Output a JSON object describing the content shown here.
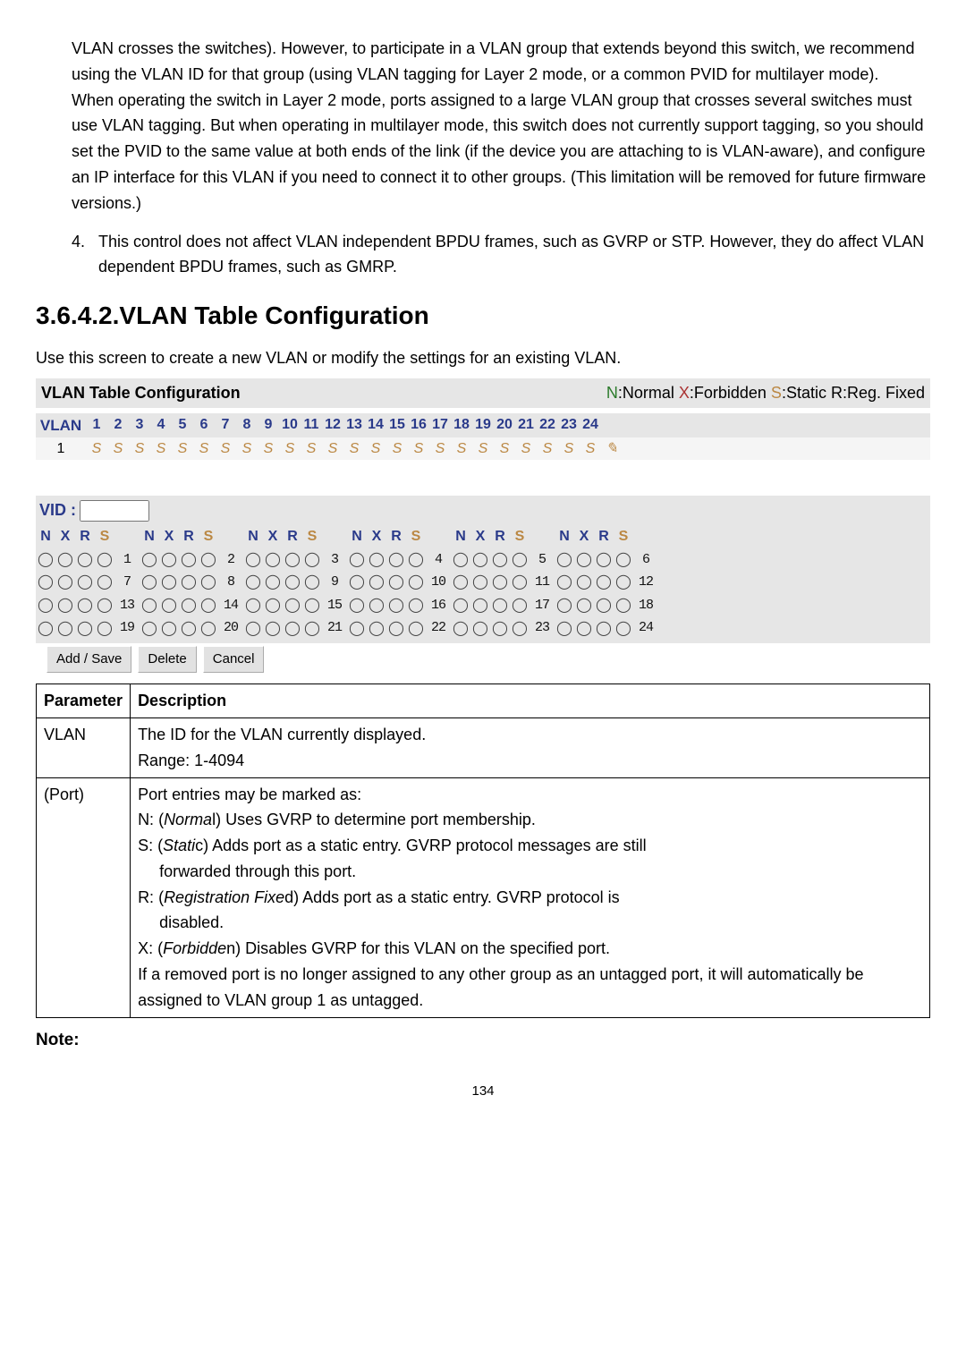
{
  "paragraphs": {
    "p1": "VLAN crosses the switches). However, to participate in a VLAN group that extends beyond this switch, we recommend using the VLAN ID for that group (using VLAN tagging for Layer 2 mode, or a common PVID for multilayer mode).",
    "p1b": "When operating the switch in Layer 2 mode, ports assigned to a large VLAN group that crosses several switches must use VLAN tagging. But when operating in multilayer mode, this switch does not currently support tagging, so you should set the PVID to the same value at both ends of the link (if the device you are attaching to is VLAN-aware), and configure an IP interface for this VLAN if you need to connect it to other groups. (This limitation will be removed for future firmware versions.)",
    "p2num": "4.",
    "p2": "This control does not affect VLAN independent BPDU frames, such as GVRP or STP. However, they do affect VLAN dependent BPDU frames, such as GMRP."
  },
  "heading": "3.6.4.2.VLAN Table Configuration",
  "subheading": "Use this screen to create a new VLAN or modify the settings for an existing VLAN.",
  "panel": {
    "title": "VLAN Table Configuration",
    "legend_n": "N",
    "legend_x": "X",
    "legend_s": "S",
    "legend_rest1": ":Normal ",
    "legend_rest2": ":Forbidden ",
    "legend_rest3": ":Static R:Reg. Fixed"
  },
  "vlan_header": {
    "label": "VLAN",
    "cols": [
      "1",
      "2",
      "3",
      "4",
      "5",
      "6",
      "7",
      "8",
      "9",
      "10",
      "11",
      "12",
      "13",
      "14",
      "15",
      "16",
      "17",
      "18",
      "19",
      "20",
      "21",
      "22",
      "23",
      "24"
    ]
  },
  "vlan_row": {
    "id": "1",
    "vals": [
      "S",
      "S",
      "S",
      "S",
      "S",
      "S",
      "S",
      "S",
      "S",
      "S",
      "S",
      "S",
      "S",
      "S",
      "S",
      "S",
      "S",
      "S",
      "S",
      "S",
      "S",
      "S",
      "S",
      "S"
    ]
  },
  "vid": {
    "label": "VID :",
    "headers": [
      "N",
      "X",
      "R",
      "S"
    ],
    "rows": [
      [
        "1",
        "2",
        "3",
        "4",
        "5",
        "6"
      ],
      [
        "7",
        "8",
        "9",
        "10",
        "11",
        "12"
      ],
      [
        "13",
        "14",
        "15",
        "16",
        "17",
        "18"
      ],
      [
        "19",
        "20",
        "21",
        "22",
        "23",
        "24"
      ]
    ],
    "buttons": {
      "add": "Add / Save",
      "delete": "Delete",
      "cancel": "Cancel"
    }
  },
  "params": {
    "header_param": "Parameter",
    "header_desc": "Description",
    "r1p": "VLAN",
    "r1d1": "The ID for the VLAN currently displayed.",
    "r1d2": "Range: 1-4094",
    "r2p": "(Port)",
    "r2d1": "Port entries may be marked as:",
    "r2d2a": "N: (",
    "r2d2b": "Norma",
    "r2d2c": "l) Uses GVRP to determine port membership.",
    "r2d3a": "S: (",
    "r2d3b": "Stati",
    "r2d3c": "c) Adds port as a static entry. GVRP protocol messages are still",
    "r2d3d": "forwarded through this port.",
    "r2d4a": "R: (",
    "r2d4b": "Registration Fixe",
    "r2d4c": "d) Adds port as a static entry. GVRP protocol is",
    "r2d4d": "disabled.",
    "r2d5a": "X: (",
    "r2d5b": "Forbidde",
    "r2d5c": "n) Disables GVRP for this VLAN on the specified port.",
    "r2d6": "If a removed port is no longer assigned to any other group as an untagged port, it will automatically be assigned to VLAN group 1 as untagged."
  },
  "note": "Note:",
  "pagenum": "134",
  "radio_glyph": "◯"
}
